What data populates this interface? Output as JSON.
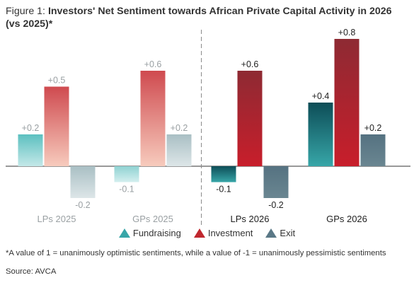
{
  "figure": {
    "label": "Figure 1: ",
    "title": "Investors' Net Sentiment towards African Private Capital Activity in 2026 (vs 2025)*"
  },
  "legend": {
    "items": [
      {
        "name": "Fundraising",
        "color": "#37a6a8"
      },
      {
        "name": "Investment",
        "color": "#c0282f"
      },
      {
        "name": "Exit",
        "color": "#5a7886"
      }
    ]
  },
  "footnote": "*A value of 1 = unanimously optimistic sentiments, while a value of -1 = unanimously pessimistic sentiments",
  "source": "Source: AVCA",
  "chart_data": {
    "type": "bar",
    "title": "Investors' Net Sentiment towards African Private Capital Activity in 2026 (vs 2025)*",
    "categories": [
      "LPs 2025",
      "GPs 2025",
      "LPs 2026",
      "GPs 2026"
    ],
    "series": [
      {
        "name": "Fundraising",
        "values": [
          0.2,
          -0.1,
          -0.1,
          0.4
        ],
        "labels": [
          "+0.2",
          "-0.1",
          "-0.1",
          "+0.4"
        ]
      },
      {
        "name": "Investment",
        "values": [
          0.5,
          0.6,
          0.6,
          0.8
        ],
        "labels": [
          "+0.5",
          "+0.6",
          "+0.6",
          "+0.8"
        ]
      },
      {
        "name": "Exit",
        "values": [
          -0.2,
          0.2,
          -0.2,
          0.2
        ],
        "labels": [
          "-0.2",
          "+0.2",
          "-0.2",
          "+0.2"
        ]
      }
    ],
    "ylim": [
      -0.3,
      0.9
    ],
    "grid": false,
    "legend_position": "bottom",
    "faded_categories": [
      "LPs 2025",
      "GPs 2025"
    ],
    "divider_after_category": "GPs 2025"
  }
}
